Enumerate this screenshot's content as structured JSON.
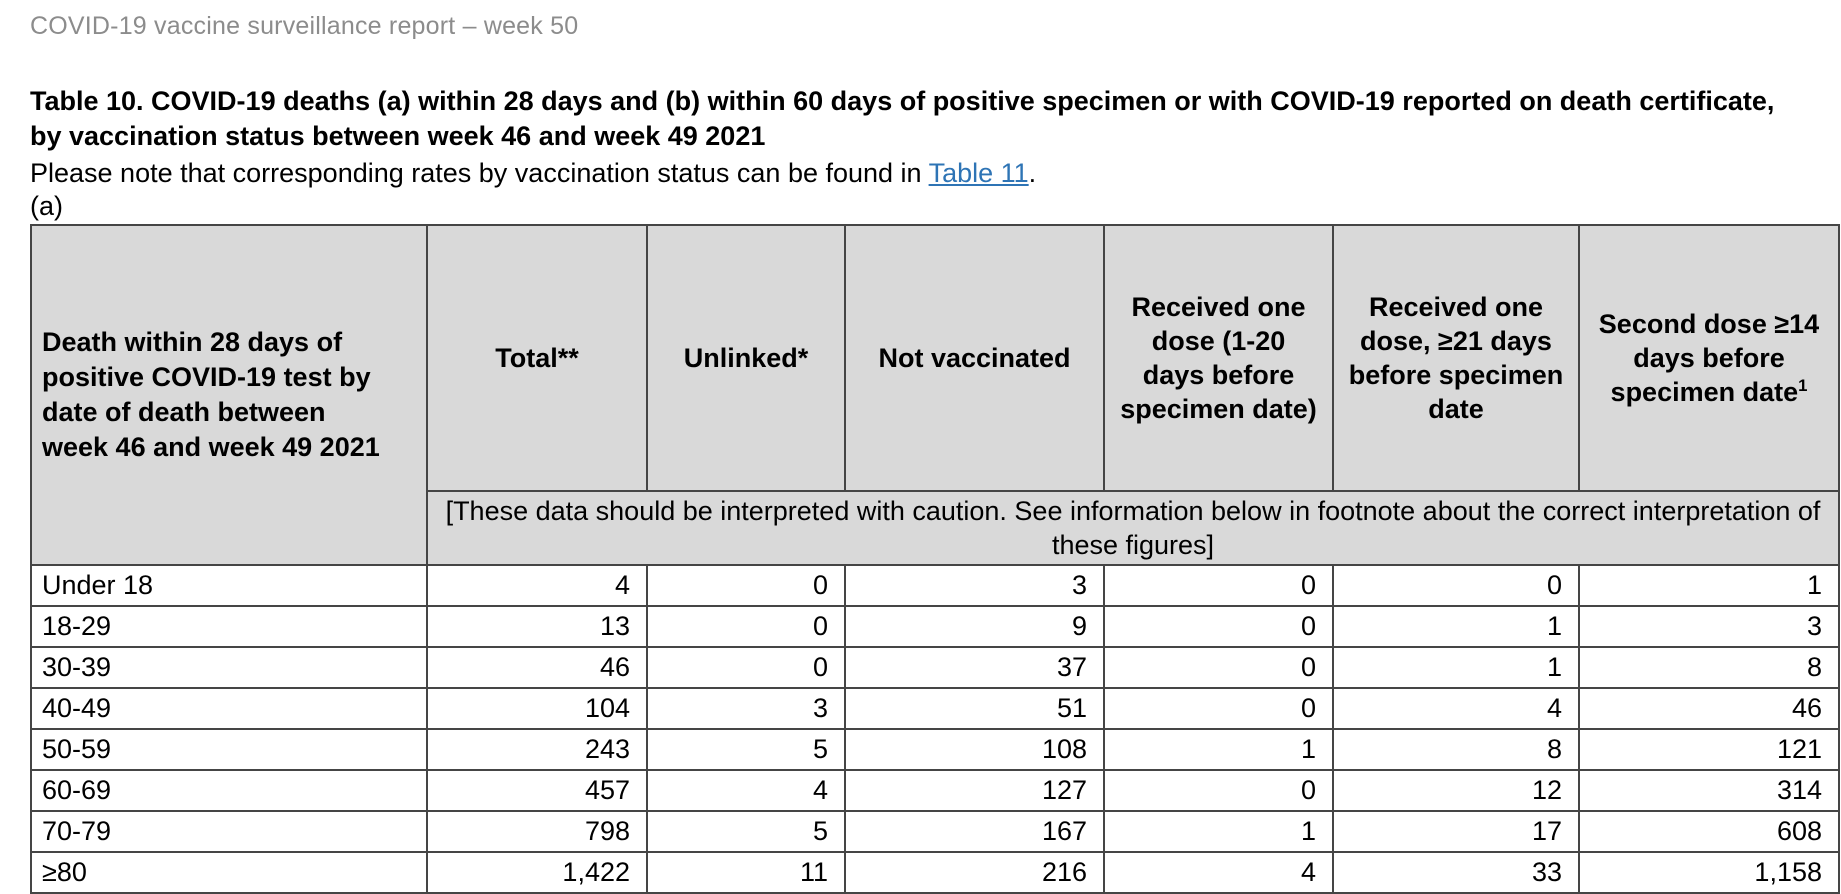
{
  "page": {
    "report_header": "COVID-19 vaccine surveillance report – week 50",
    "title": "Table 10. COVID-19 deaths (a) within 28 days and (b) within 60 days of positive specimen or with COVID-19 reported on death certificate, by vaccination status between week 46 and week 49 2021",
    "note_prefix": "Please note that corresponding rates by vaccination status can be found in ",
    "note_link": "Table 11",
    "note_suffix": ".",
    "section_label": "(a)"
  },
  "table": {
    "row_header_label": "Death within 28 days of positive COVID-19 test by date of death between week 46 and week 49 2021",
    "columns": [
      {
        "label": "Total**"
      },
      {
        "label": "Unlinked*"
      },
      {
        "label": "Not vaccinated"
      },
      {
        "label": "Received one dose (1-20 days before specimen date)"
      },
      {
        "label": "Received one dose, ≥21 days before specimen date"
      },
      {
        "label": "Second dose ≥14 days before specimen date",
        "sup": "1"
      }
    ],
    "caution_note": "[These data should be interpreted with caution. See information below in footnote about the correct interpretation of these figures]",
    "rows": [
      {
        "label": "Under 18",
        "values": [
          "4",
          "0",
          "3",
          "0",
          "0",
          "1"
        ]
      },
      {
        "label": "18-29",
        "values": [
          "13",
          "0",
          "9",
          "0",
          "1",
          "3"
        ]
      },
      {
        "label": "30-39",
        "values": [
          "46",
          "0",
          "37",
          "0",
          "1",
          "8"
        ]
      },
      {
        "label": "40-49",
        "values": [
          "104",
          "3",
          "51",
          "0",
          "4",
          "46"
        ]
      },
      {
        "label": "50-59",
        "values": [
          "243",
          "5",
          "108",
          "1",
          "8",
          "121"
        ]
      },
      {
        "label": "60-69",
        "values": [
          "457",
          "4",
          "127",
          "0",
          "12",
          "314"
        ]
      },
      {
        "label": "70-79",
        "values": [
          "798",
          "5",
          "167",
          "1",
          "17",
          "608"
        ]
      },
      {
        "label": "≥80",
        "values": [
          "1,422",
          "11",
          "216",
          "4",
          "33",
          "1,158"
        ]
      }
    ]
  },
  "chart_data": {
    "type": "table",
    "title": "Table 10 (a): COVID-19 deaths within 28 days of positive specimen, by vaccination status, week 46 to week 49 2021",
    "categories": [
      "Under 18",
      "18-29",
      "30-39",
      "40-49",
      "50-59",
      "60-69",
      "70-79",
      "≥80"
    ],
    "series": [
      {
        "name": "Total**",
        "values": [
          4,
          13,
          46,
          104,
          243,
          457,
          798,
          1422
        ]
      },
      {
        "name": "Unlinked*",
        "values": [
          0,
          0,
          0,
          3,
          5,
          4,
          5,
          11
        ]
      },
      {
        "name": "Not vaccinated",
        "values": [
          3,
          9,
          37,
          51,
          108,
          127,
          167,
          216
        ]
      },
      {
        "name": "Received one dose (1-20 days before specimen date)",
        "values": [
          0,
          0,
          0,
          0,
          1,
          0,
          1,
          4
        ]
      },
      {
        "name": "Received one dose, ≥21 days before specimen date",
        "values": [
          0,
          1,
          1,
          4,
          8,
          12,
          17,
          33
        ]
      },
      {
        "name": "Second dose ≥14 days before specimen date",
        "values": [
          1,
          3,
          8,
          46,
          121,
          314,
          608,
          1158
        ]
      }
    ]
  },
  "colors": {
    "page-bg": "#ffffff",
    "header-fill": "#d9d9d9",
    "border": "#454545",
    "muted": "#8c8c8c",
    "link": "#2e74b5",
    "ink": "#000000"
  }
}
